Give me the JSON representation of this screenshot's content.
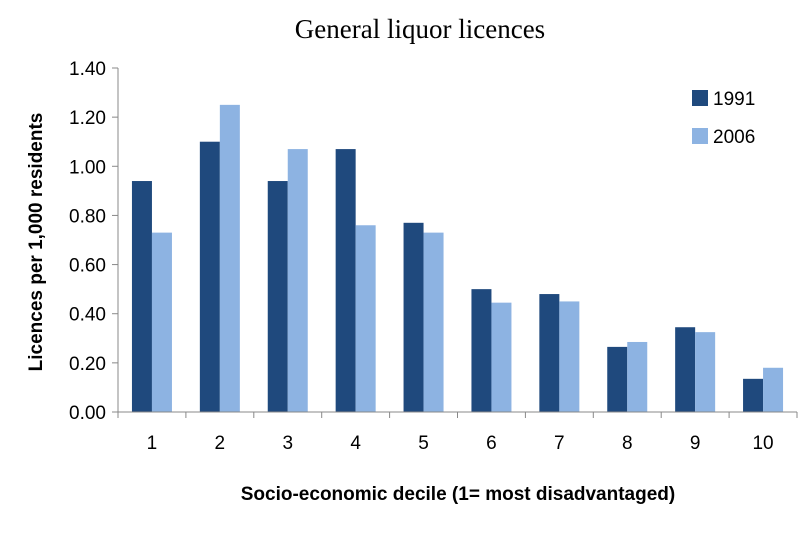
{
  "chart_data": {
    "type": "bar",
    "title": "General liquor licences",
    "xlabel": "Socio-economic decile (1= most disadvantaged)",
    "ylabel": "Licences per 1,000 residents",
    "categories": [
      "1",
      "2",
      "3",
      "4",
      "5",
      "6",
      "7",
      "8",
      "9",
      "10"
    ],
    "series": [
      {
        "name": "1991",
        "color": "#1f497d",
        "values": [
          0.94,
          1.1,
          0.94,
          1.07,
          0.77,
          0.5,
          0.48,
          0.265,
          0.345,
          0.135
        ]
      },
      {
        "name": "2006",
        "color": "#8db3e2",
        "values": [
          0.73,
          1.25,
          1.07,
          0.76,
          0.73,
          0.445,
          0.45,
          0.285,
          0.325,
          0.18
        ]
      }
    ],
    "ylim": [
      0,
      1.4
    ],
    "yticks": [
      "0.00",
      "0.20",
      "0.40",
      "0.60",
      "0.80",
      "1.00",
      "1.20",
      "1.40"
    ],
    "grid": false,
    "legend_position": "top-right"
  }
}
